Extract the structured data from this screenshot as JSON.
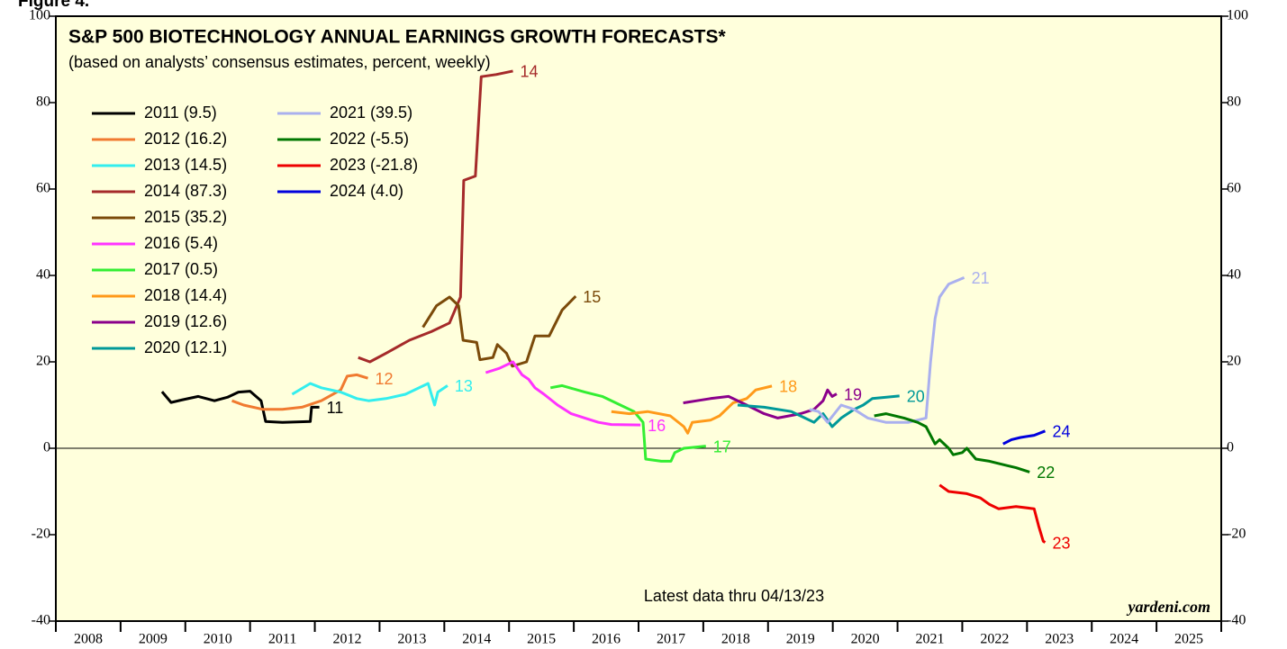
{
  "chart_data": {
    "type": "line",
    "figure_label": "Figure 4.",
    "title": "S&P 500 BIOTECHNOLOGY ANNUAL EARNINGS GROWTH FORECASTS*",
    "subtitle": "(based on analysts’ consensus estimates, percent, weekly)",
    "note": "Latest data thru 04/13/23",
    "source": "yardeni.com",
    "background": "#ffffdc",
    "xlim": [
      2008,
      2026
    ],
    "xticks": [
      2008,
      2009,
      2010,
      2011,
      2012,
      2013,
      2014,
      2015,
      2016,
      2017,
      2018,
      2019,
      2020,
      2021,
      2022,
      2023,
      2024,
      2025,
      2026
    ],
    "year_labels": [
      "2008",
      "2009",
      "2010",
      "2011",
      "2012",
      "2013",
      "2014",
      "2015",
      "2016",
      "2017",
      "2018",
      "2019",
      "2020",
      "2021",
      "2022",
      "2023",
      "2024",
      "2025"
    ],
    "ylim": [
      -40,
      100
    ],
    "yticks": [
      -40,
      -20,
      0,
      20,
      40,
      60,
      80,
      100
    ],
    "series": [
      {
        "name": "2011 (9.5)",
        "end_label": "11",
        "color": "#000000",
        "x": [
          2009.64,
          2009.78,
          2009.95,
          2010.2,
          2010.45,
          2010.65,
          2010.82,
          2011.0,
          2011.17,
          2011.24,
          2011.5,
          2011.93,
          2011.95,
          2012.07
        ],
        "values": [
          13.1,
          10.6,
          11.2,
          12.0,
          11.0,
          11.8,
          13.0,
          13.2,
          11.0,
          6.2,
          6.0,
          6.2,
          9.5,
          9.5
        ]
      },
      {
        "name": "2012 (16.2)",
        "end_label": "12",
        "color": "#f07a30",
        "x": [
          2010.72,
          2010.9,
          2011.2,
          2011.5,
          2011.8,
          2012.1,
          2012.4,
          2012.5,
          2012.65,
          2012.82
        ],
        "values": [
          11.0,
          10.0,
          9.0,
          9.0,
          9.5,
          11.0,
          13.5,
          16.7,
          17.0,
          16.2
        ]
      },
      {
        "name": "2013 (14.5)",
        "end_label": "13",
        "color": "#33eeee",
        "x": [
          2011.65,
          2011.93,
          2012.1,
          2012.4,
          2012.65,
          2012.83,
          2013.1,
          2013.4,
          2013.75,
          2013.85,
          2013.9,
          2014.05
        ],
        "values": [
          12.5,
          15.0,
          14.0,
          13.0,
          11.5,
          11.0,
          11.5,
          12.5,
          15.0,
          10.0,
          13.0,
          14.5
        ]
      },
      {
        "name": "2014 (87.3)",
        "end_label": "14",
        "color": "#a52a2a",
        "x": [
          2012.67,
          2012.85,
          2013.1,
          2013.46,
          2013.8,
          2014.08,
          2014.25,
          2014.3,
          2014.48,
          2014.57,
          2014.8,
          2015.06
        ],
        "values": [
          21.0,
          20.0,
          22.0,
          25.0,
          27.0,
          29.0,
          35.0,
          62.0,
          63.0,
          86.0,
          86.5,
          87.3
        ]
      },
      {
        "name": "2015 (35.2)",
        "end_label": "15",
        "color": "#7b4a0a",
        "x": [
          2013.67,
          2013.88,
          2014.08,
          2014.22,
          2014.29,
          2014.5,
          2014.55,
          2014.75,
          2014.82,
          2014.96,
          2015.05,
          2015.27,
          2015.4,
          2015.62,
          2015.82,
          2016.03
        ],
        "values": [
          28.0,
          33.0,
          35.0,
          33.0,
          25.0,
          24.5,
          20.5,
          21.0,
          24.0,
          22.0,
          19.0,
          20.0,
          26.0,
          26.0,
          32.0,
          35.2
        ]
      },
      {
        "name": "2016 (5.4)",
        "end_label": "16",
        "color": "#ff33ff",
        "x": [
          2014.64,
          2014.85,
          2015.06,
          2015.2,
          2015.3,
          2015.4,
          2015.54,
          2015.75,
          2015.96,
          2016.17,
          2016.38,
          2016.58,
          2017.03
        ],
        "values": [
          17.5,
          18.5,
          20.0,
          17.0,
          16.0,
          14.0,
          12.5,
          10.0,
          8.0,
          7.0,
          6.0,
          5.5,
          5.4
        ]
      },
      {
        "name": "2017 (0.5)",
        "end_label": "17",
        "color": "#33ee33",
        "x": [
          2015.64,
          2015.82,
          2016.17,
          2016.44,
          2016.72,
          2016.93,
          2017.07,
          2017.11,
          2017.35,
          2017.5,
          2017.56,
          2017.7,
          2018.04
        ],
        "values": [
          14.0,
          14.5,
          13.0,
          12.0,
          10.0,
          8.5,
          6.0,
          -2.5,
          -3.0,
          -3.0,
          -1.0,
          0.0,
          0.5
        ]
      },
      {
        "name": "2018 (14.4)",
        "end_label": "18",
        "color": "#ff9a1a",
        "x": [
          2016.58,
          2016.86,
          2017.14,
          2017.49,
          2017.7,
          2017.76,
          2017.83,
          2018.11,
          2018.25,
          2018.46,
          2018.67,
          2018.81,
          2019.06
        ],
        "values": [
          8.5,
          8.0,
          8.5,
          7.5,
          5.0,
          3.5,
          6.0,
          6.5,
          7.5,
          10.5,
          11.5,
          13.5,
          14.4
        ]
      },
      {
        "name": "2019 (12.6)",
        "end_label": "19",
        "color": "#8b008b",
        "x": [
          2017.69,
          2017.9,
          2018.11,
          2018.39,
          2018.67,
          2018.94,
          2019.15,
          2019.5,
          2019.71,
          2019.85,
          2019.92,
          2019.99,
          2020.06
        ],
        "values": [
          10.5,
          11.0,
          11.5,
          12.0,
          10.0,
          8.0,
          7.0,
          8.0,
          9.0,
          11.0,
          13.5,
          12.0,
          12.6
        ]
      },
      {
        "name": "2020 (12.1)",
        "end_label": "20",
        "color": "#009999",
        "x": [
          2018.53,
          2018.94,
          2019.36,
          2019.57,
          2019.71,
          2019.85,
          2019.99,
          2020.13,
          2020.33,
          2020.47,
          2020.61,
          2021.03
        ],
        "values": [
          10.0,
          9.5,
          8.5,
          7.0,
          6.0,
          8.0,
          5.0,
          7.0,
          9.0,
          10.0,
          11.5,
          12.1
        ]
      },
      {
        "name": "2021 (39.5)",
        "end_label": "21",
        "color": "#aab0ee",
        "x": [
          2019.64,
          2019.78,
          2019.92,
          2020.13,
          2020.33,
          2020.54,
          2020.82,
          2021.17,
          2021.44,
          2021.51,
          2021.58,
          2021.65,
          2021.79,
          2022.03
        ],
        "values": [
          9.0,
          8.5,
          6.0,
          10.0,
          9.0,
          7.0,
          6.0,
          6.0,
          7.0,
          20.0,
          30.0,
          35.0,
          38.0,
          39.5
        ]
      },
      {
        "name": "2022 (-5.5)",
        "end_label": "22",
        "color": "#007700",
        "x": [
          2020.64,
          2020.82,
          2021.1,
          2021.31,
          2021.44,
          2021.58,
          2021.65,
          2021.79,
          2021.86,
          2022.0,
          2022.07,
          2022.21,
          2022.42,
          2022.69,
          2022.83,
          2023.04
        ],
        "values": [
          7.5,
          8.0,
          7.0,
          6.0,
          5.0,
          1.0,
          2.0,
          0.0,
          -1.5,
          -1.0,
          0.0,
          -2.5,
          -3.0,
          -4.0,
          -4.5,
          -5.5
        ]
      },
      {
        "name": "2023 (-21.8)",
        "end_label": "23",
        "color": "#ee0000",
        "x": [
          2021.65,
          2021.79,
          2022.07,
          2022.28,
          2022.42,
          2022.56,
          2022.83,
          2023.11,
          2023.18,
          2023.25,
          2023.28
        ],
        "values": [
          -8.5,
          -10.0,
          -10.5,
          -11.5,
          -13.0,
          -14.0,
          -13.5,
          -14.0,
          -18.0,
          -21.5,
          -21.8
        ]
      },
      {
        "name": "2024 (4.0)",
        "end_label": "24",
        "color": "#0000dd",
        "x": [
          2022.63,
          2022.76,
          2022.9,
          2023.11,
          2023.28
        ],
        "values": [
          1.0,
          2.0,
          2.5,
          3.0,
          4.0
        ]
      }
    ]
  }
}
